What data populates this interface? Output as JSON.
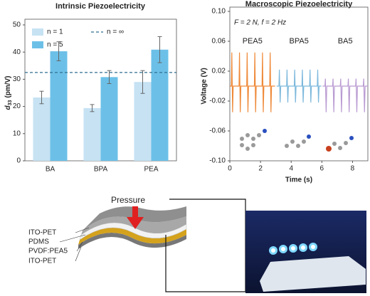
{
  "chart_data": [
    {
      "type": "bar",
      "title": "Intrinsic Piezoelectricity",
      "y_label": {
        "symbol": "d",
        "subscript": "33",
        "unit": "(pm/V)"
      },
      "categories": [
        "BA",
        "BPA",
        "PEA"
      ],
      "series": [
        {
          "name": "n = 1",
          "color": "#c6e2f3",
          "values": [
            23.3,
            19.4,
            29.0
          ],
          "errors": [
            2.3,
            1.3,
            4.2
          ]
        },
        {
          "name": "n = 5",
          "color": "#6cc0e8",
          "values": [
            40.3,
            30.8,
            40.9
          ],
          "errors": [
            3.5,
            2.4,
            4.8
          ]
        }
      ],
      "reference_line": {
        "name": "n = ∞",
        "value": 32.5,
        "color": "#2f6f8f"
      },
      "ylim": [
        0,
        50
      ],
      "yticks": [
        0,
        10,
        20,
        30,
        40,
        50
      ]
    },
    {
      "type": "line",
      "title": "Macroscopic Piezoelectricity",
      "x_label": "Time (s)",
      "y_label": "Voltage (V)",
      "annotation": "F = 2 N, f = 2 Hz",
      "series": [
        {
          "name": "PEA5",
          "color": "#ef8a3a",
          "x": [
            0,
            0.1,
            0.13,
            0.18,
            0.22,
            0.6,
            0.63,
            0.68,
            0.72,
            1.1,
            1.13,
            1.18,
            1.22,
            1.6,
            1.63,
            1.68,
            1.72,
            2.1,
            2.13,
            2.18,
            2.22,
            2.6,
            2.63,
            2.68,
            2.72,
            2.95
          ],
          "values": [
            0,
            0,
            0.045,
            -0.035,
            0,
            0,
            0.045,
            -0.035,
            0,
            0,
            0.045,
            -0.035,
            0,
            0,
            0.045,
            -0.035,
            0,
            0,
            0.045,
            -0.035,
            0,
            0,
            0.045,
            -0.035,
            0,
            0
          ]
        },
        {
          "name": "BPA5",
          "color": "#7db9dc",
          "x": [
            3.05,
            3.2,
            3.23,
            3.28,
            3.32,
            3.7,
            3.73,
            3.78,
            3.82,
            4.2,
            4.23,
            4.28,
            4.32,
            4.7,
            4.73,
            4.78,
            4.82,
            5.2,
            5.23,
            5.28,
            5.32,
            5.7,
            5.73,
            5.78,
            5.82,
            5.97
          ],
          "values": [
            0,
            0,
            0.022,
            -0.022,
            0,
            0,
            0.022,
            -0.022,
            0,
            0,
            0.022,
            -0.022,
            0,
            0,
            0.022,
            -0.022,
            0,
            0,
            0.022,
            -0.022,
            0,
            0,
            0.022,
            -0.022,
            0,
            0
          ]
        },
        {
          "name": "BA5",
          "color": "#b99ad2",
          "x": [
            6.05,
            6.2,
            6.23,
            6.28,
            6.32,
            6.7,
            6.73,
            6.78,
            6.82,
            7.2,
            7.23,
            7.28,
            7.32,
            7.7,
            7.73,
            7.78,
            7.82,
            8.2,
            8.23,
            8.28,
            8.32,
            8.7,
            8.73,
            8.78,
            8.82,
            9.0
          ],
          "values": [
            0,
            0,
            0.01,
            -0.035,
            0,
            0,
            0.01,
            -0.035,
            0,
            0,
            0.01,
            -0.035,
            0,
            0,
            0.01,
            -0.035,
            0,
            0,
            0.01,
            -0.035,
            0,
            0,
            0.01,
            -0.035,
            0,
            0
          ]
        }
      ],
      "xlim": [
        0,
        9
      ],
      "xticks": [
        0,
        2,
        4,
        6,
        8
      ],
      "ylim": [
        -0.1,
        0.1
      ],
      "yticks": [
        {
          "value": -0.1,
          "label": "-0.10"
        },
        {
          "value": -0.06,
          "label": "-0.06"
        },
        {
          "value": -0.02,
          "label": "-0.02"
        },
        {
          "value": 0.02,
          "label": "0.02"
        },
        {
          "value": 0.06,
          "label": "0.06"
        },
        {
          "value": 0.1,
          "label": "0.10"
        }
      ]
    }
  ],
  "diagram": {
    "pressure_label": "Pressure",
    "layers": [
      "ITO-PET",
      "PDMS",
      "PVDF:PEA5",
      "ITO-PET"
    ]
  }
}
